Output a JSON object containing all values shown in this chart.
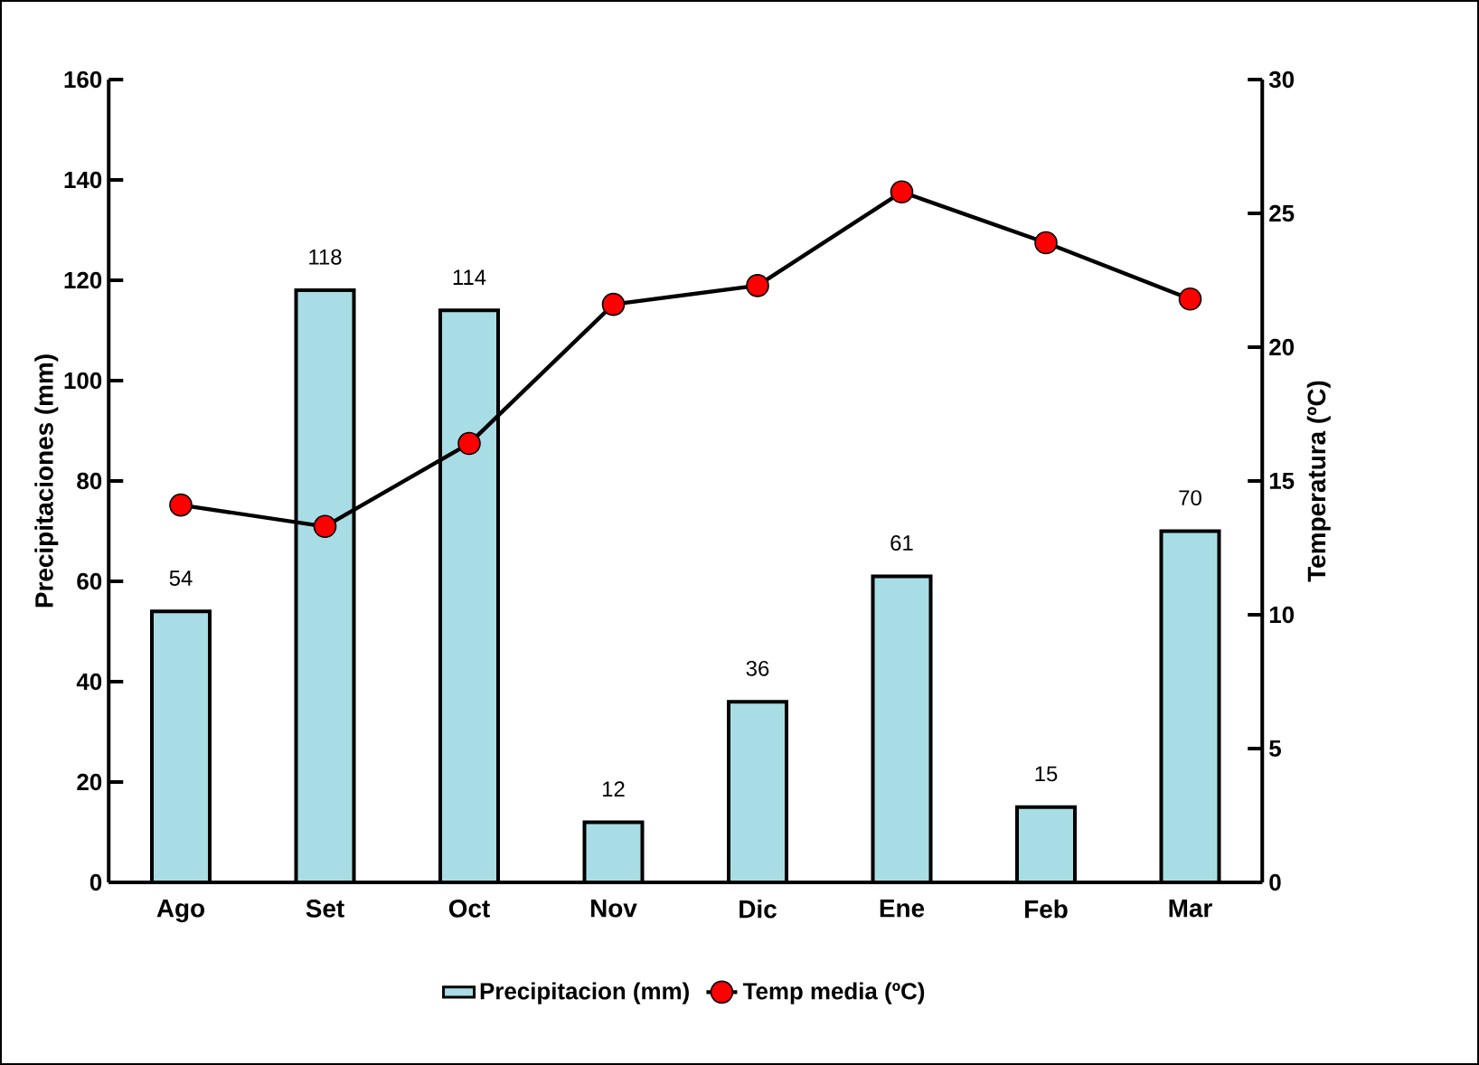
{
  "chart_data": {
    "type": "bar",
    "ylabel": "Precipitaciones (mm)",
    "y2label": "Temperatura (ºC)",
    "categories": [
      "Ago",
      "Set",
      "Oct",
      "Nov",
      "Dic",
      "Ene",
      "Feb",
      "Mar"
    ],
    "series": [
      {
        "name": "Precipitacion (mm)",
        "color": "#a8dde6",
        "values": [
          54,
          118,
          114,
          12,
          36,
          61,
          15,
          70
        ],
        "value_labels": [
          "54",
          "118",
          "114",
          "12",
          "36",
          "61",
          "15",
          "70"
        ]
      },
      {
        "name": "Temp media (ºC)",
        "type": "line",
        "axis": "y2",
        "color": "#ff0000",
        "marker": "circle",
        "values": [
          14.1,
          13.3,
          16.4,
          21.6,
          22.3,
          25.8,
          23.9,
          21.8
        ]
      }
    ],
    "ylim": [
      0,
      160
    ],
    "yticks": [
      0,
      20,
      40,
      60,
      80,
      100,
      120,
      140,
      160
    ],
    "y2lim": [
      0,
      30
    ],
    "y2ticks": [
      0,
      5,
      10,
      15,
      20,
      25,
      30
    ],
    "legend": "bottom"
  }
}
